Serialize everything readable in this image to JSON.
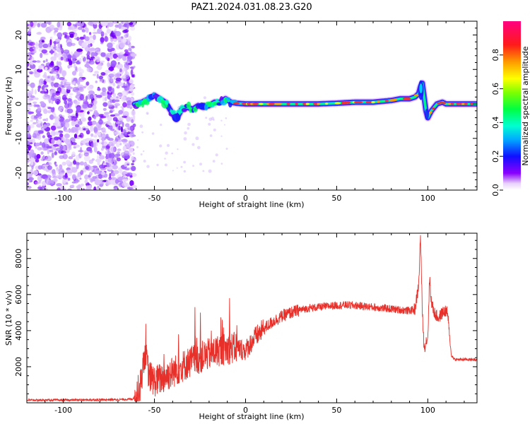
{
  "title": "PAZ1.2024.031.08.23.G20",
  "chart_data": [
    {
      "type": "heatmap",
      "xlabel": "Height of straight line (km)",
      "ylabel": "Frequency (Hz)",
      "xlim": [
        -120,
        127
      ],
      "ylim": [
        -25,
        24
      ],
      "xticks": [
        -100,
        -50,
        0,
        50,
        100
      ],
      "yticks": [
        -20,
        -10,
        0,
        10,
        20
      ],
      "noise_region_x": [
        -120,
        -61
      ],
      "ridge": {
        "x": [
          -61,
          -57,
          -53,
          -50,
          -47,
          -44,
          -41,
          -38,
          -35,
          -32,
          -29,
          -26,
          -23,
          -20,
          -17,
          -14,
          -11,
          -8,
          -5,
          0,
          10,
          20,
          30,
          40,
          50,
          60,
          70,
          80,
          85,
          90,
          93,
          95,
          96,
          97,
          98,
          99,
          100,
          102,
          105,
          108,
          110,
          113,
          120,
          127
        ],
        "freq": [
          0,
          0.5,
          1.5,
          2.5,
          1.5,
          0.5,
          -2,
          -4.5,
          -1.5,
          -1,
          -1.5,
          -0.5,
          -1,
          -0.5,
          0.5,
          0.5,
          1.5,
          0.5,
          0.2,
          0,
          0,
          0,
          0,
          0,
          0.2,
          0.5,
          0.5,
          1,
          1.5,
          1.5,
          2,
          3,
          5,
          6,
          2,
          -2,
          -4,
          -2,
          0,
          0.5,
          0,
          0,
          0,
          0
        ]
      },
      "colorbar": {
        "label": "Normalized spectral amplitude",
        "range": [
          0,
          1
        ],
        "ticks": [
          0.0,
          0.2,
          0.4,
          0.6,
          0.8
        ],
        "tick_labels": [
          "0.0",
          "0.2",
          "0.4",
          "0.6",
          "0.8"
        ],
        "colormap": "gist_rainbow_r"
      }
    },
    {
      "type": "line",
      "xlabel": "Height of straight line (km)",
      "ylabel": "SNR (10 * v/v)",
      "xlim": [
        -120,
        127
      ],
      "ylim": [
        0,
        9400
      ],
      "xticks": [
        -100,
        -50,
        0,
        50,
        100
      ],
      "yticks": [
        2000,
        4000,
        6000,
        8000
      ],
      "line_color": "#e8302a",
      "series": [
        {
          "x": [
            -120,
            -110,
            -100,
            -90,
            -80,
            -70,
            -62,
            -58,
            -55,
            -53,
            -50,
            -45,
            -40,
            -35,
            -30,
            -25,
            -20,
            -15,
            -10,
            -5,
            0,
            5,
            10,
            15,
            20,
            25,
            30,
            35,
            40,
            45,
            50,
            55,
            60,
            65,
            70,
            75,
            80,
            85,
            90,
            93,
            95,
            96,
            97,
            98,
            99,
            100,
            101,
            102,
            104,
            106,
            108,
            110,
            111,
            112,
            113,
            115,
            120,
            127
          ],
          "y": [
            150,
            150,
            150,
            160,
            170,
            180,
            200,
            800,
            2800,
            1500,
            1200,
            1400,
            1700,
            2000,
            2300,
            2500,
            2700,
            2900,
            3000,
            3050,
            2900,
            3600,
            4100,
            4500,
            4800,
            5000,
            5150,
            5250,
            5300,
            5350,
            5400,
            5420,
            5400,
            5350,
            5300,
            5250,
            5200,
            5150,
            5100,
            5200,
            6500,
            9300,
            5000,
            3000,
            3400,
            3600,
            7000,
            5500,
            4900,
            4700,
            5000,
            5100,
            4900,
            3500,
            2600,
            2400,
            2400,
            2400
          ]
        }
      ],
      "spikes": [
        {
          "x": -28,
          "y": 5300
        },
        {
          "x": -25,
          "y": 5000
        },
        {
          "x": -27,
          "y": 3600
        },
        {
          "x": -9,
          "y": 5800
        },
        {
          "x": -13,
          "y": 4600
        },
        {
          "x": -37,
          "y": 3800
        },
        {
          "x": -45,
          "y": 2700
        },
        {
          "x": -19,
          "y": 4000
        },
        {
          "x": -5,
          "y": 4300
        }
      ]
    }
  ]
}
